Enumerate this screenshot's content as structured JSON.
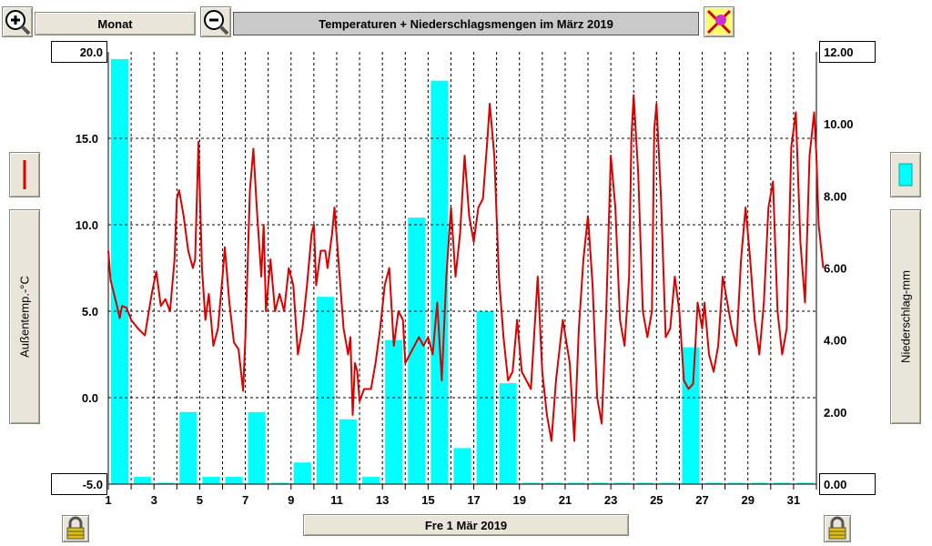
{
  "toolbar": {
    "zoom_in_icon": "zoom-in-icon",
    "period_label": "Monat",
    "zoom_out_icon": "zoom-out-icon",
    "title": "Temperaturen + Niederschlagsmengen im März 2019",
    "print_icon": "print-icon"
  },
  "left_panel": {
    "ylabel": "Außentemp.-°C",
    "series_icon": "red-line-icon"
  },
  "right_panel": {
    "ylabel": "Niederschlag-mm",
    "series_icon": "cyan-bar-icon"
  },
  "footer": {
    "date_label": "Fre 1 Mär 2019",
    "lock_icon": "lock-icon"
  },
  "colors": {
    "temp": "#dd0000",
    "rain": "#00ffff",
    "grid": "#000000"
  },
  "chart_data": {
    "type": "line+bar",
    "title": "Temperaturen + Niederschlagsmengen im März 2019",
    "x_ticks": [
      1,
      3,
      5,
      7,
      9,
      11,
      13,
      15,
      17,
      19,
      21,
      23,
      25,
      27,
      29,
      31
    ],
    "xlim": [
      1,
      32
    ],
    "y_left": {
      "label": "Außentemp.-°C",
      "lim": [
        -5,
        20
      ],
      "ticks": [
        "-5.0",
        "0.0",
        "5.0",
        "10.0",
        "15.0",
        "20.0"
      ]
    },
    "y_right": {
      "label": "Niederschlag-mm",
      "lim": [
        0,
        12
      ],
      "ticks": [
        "0.00",
        "2.00",
        "4.00",
        "6.00",
        "8.00",
        "10.00",
        "12.00"
      ]
    },
    "grid": true,
    "series": [
      {
        "kind": "bar",
        "axis": "right",
        "days": [
          1,
          2,
          3,
          4,
          5,
          6,
          7,
          8,
          9,
          10,
          11,
          12,
          13,
          14,
          15,
          16,
          17,
          18,
          19,
          20,
          21,
          22,
          23,
          24,
          25,
          26,
          27,
          28,
          29,
          30,
          31
        ],
        "values": [
          11.8,
          0.2,
          0.0,
          2.0,
          0.2,
          0.2,
          2.0,
          0.0,
          0.6,
          5.2,
          1.8,
          0.2,
          4.0,
          7.4,
          11.2,
          1.0,
          4.8,
          2.8,
          0.0,
          0.0,
          0.0,
          0.0,
          0.0,
          0.0,
          0.0,
          3.8,
          0.0,
          0.0,
          0.0,
          0.0,
          0.0
        ]
      },
      {
        "kind": "line",
        "axis": "left",
        "points": [
          [
            1.0,
            8.5
          ],
          [
            1.1,
            6.8
          ],
          [
            1.25,
            6.0
          ],
          [
            1.4,
            5.2
          ],
          [
            1.5,
            4.6
          ],
          [
            1.6,
            5.3
          ],
          [
            1.8,
            5.2
          ],
          [
            2.0,
            4.5
          ],
          [
            2.3,
            4.0
          ],
          [
            2.6,
            3.6
          ],
          [
            2.9,
            6.0
          ],
          [
            3.1,
            7.3
          ],
          [
            3.3,
            5.3
          ],
          [
            3.5,
            5.7
          ],
          [
            3.7,
            5.0
          ],
          [
            3.9,
            8.0
          ],
          [
            4.0,
            11.5
          ],
          [
            4.1,
            12.0
          ],
          [
            4.3,
            10.5
          ],
          [
            4.5,
            8.5
          ],
          [
            4.7,
            7.5
          ],
          [
            4.8,
            8.0
          ],
          [
            4.95,
            14.8
          ],
          [
            5.1,
            7.5
          ],
          [
            5.25,
            4.5
          ],
          [
            5.4,
            6.0
          ],
          [
            5.6,
            3.0
          ],
          [
            5.8,
            4.0
          ],
          [
            6.0,
            7.0
          ],
          [
            6.1,
            8.7
          ],
          [
            6.3,
            5.5
          ],
          [
            6.5,
            3.2
          ],
          [
            6.7,
            2.8
          ],
          [
            6.9,
            0.4
          ],
          [
            7.0,
            3.5
          ],
          [
            7.2,
            12.0
          ],
          [
            7.35,
            14.4
          ],
          [
            7.5,
            11.0
          ],
          [
            7.7,
            7.0
          ],
          [
            7.8,
            10.0
          ],
          [
            7.9,
            5.0
          ],
          [
            8.1,
            8.0
          ],
          [
            8.3,
            5.0
          ],
          [
            8.5,
            6.0
          ],
          [
            8.7,
            5.0
          ],
          [
            8.9,
            7.5
          ],
          [
            9.1,
            6.5
          ],
          [
            9.3,
            2.5
          ],
          [
            9.5,
            4.0
          ],
          [
            9.7,
            6.5
          ],
          [
            9.9,
            9.5
          ],
          [
            10.0,
            10.0
          ],
          [
            10.1,
            6.5
          ],
          [
            10.3,
            8.5
          ],
          [
            10.5,
            8.5
          ],
          [
            10.6,
            7.5
          ],
          [
            10.8,
            9.5
          ],
          [
            10.9,
            11.0
          ],
          [
            11.1,
            7.5
          ],
          [
            11.3,
            4.0
          ],
          [
            11.5,
            2.5
          ],
          [
            11.6,
            3.5
          ],
          [
            11.7,
            -1.0
          ],
          [
            11.8,
            2.0
          ],
          [
            11.9,
            1.5
          ],
          [
            12.0,
            -0.2
          ],
          [
            12.2,
            0.5
          ],
          [
            12.5,
            0.5
          ],
          [
            12.7,
            2.0
          ],
          [
            12.9,
            4.0
          ],
          [
            13.1,
            6.5
          ],
          [
            13.3,
            7.5
          ],
          [
            13.5,
            3.0
          ],
          [
            13.7,
            5.0
          ],
          [
            13.9,
            4.5
          ],
          [
            14.0,
            2.0
          ],
          [
            14.2,
            2.5
          ],
          [
            14.4,
            3.0
          ],
          [
            14.6,
            3.5
          ],
          [
            14.8,
            3.0
          ],
          [
            15.0,
            3.5
          ],
          [
            15.2,
            2.5
          ],
          [
            15.4,
            5.5
          ],
          [
            15.6,
            1.0
          ],
          [
            15.8,
            7.0
          ],
          [
            16.0,
            11.0
          ],
          [
            16.2,
            7.0
          ],
          [
            16.4,
            9.5
          ],
          [
            16.6,
            14.0
          ],
          [
            16.8,
            10.5
          ],
          [
            17.0,
            9.0
          ],
          [
            17.2,
            11.0
          ],
          [
            17.4,
            11.5
          ],
          [
            17.6,
            15.0
          ],
          [
            17.7,
            17.0
          ],
          [
            17.9,
            14.0
          ],
          [
            18.1,
            7.0
          ],
          [
            18.3,
            3.5
          ],
          [
            18.5,
            1.0
          ],
          [
            18.7,
            1.5
          ],
          [
            18.9,
            4.5
          ],
          [
            19.1,
            1.5
          ],
          [
            19.3,
            1.0
          ],
          [
            19.5,
            0.5
          ],
          [
            19.8,
            7.0
          ],
          [
            20.0,
            1.5
          ],
          [
            20.2,
            -1.0
          ],
          [
            20.4,
            -2.5
          ],
          [
            20.6,
            1.0
          ],
          [
            20.9,
            4.5
          ],
          [
            21.2,
            2.0
          ],
          [
            21.4,
            -2.5
          ],
          [
            21.6,
            4.0
          ],
          [
            21.8,
            8.0
          ],
          [
            22.0,
            10.5
          ],
          [
            22.2,
            6.5
          ],
          [
            22.4,
            0.0
          ],
          [
            22.6,
            -1.5
          ],
          [
            22.8,
            5.0
          ],
          [
            23.0,
            14.0
          ],
          [
            23.2,
            11.0
          ],
          [
            23.4,
            4.5
          ],
          [
            23.6,
            3.0
          ],
          [
            23.8,
            7.0
          ],
          [
            23.9,
            15.0
          ],
          [
            24.0,
            17.5
          ],
          [
            24.2,
            13.0
          ],
          [
            24.4,
            5.0
          ],
          [
            24.6,
            3.5
          ],
          [
            24.8,
            5.0
          ],
          [
            24.9,
            15.5
          ],
          [
            25.0,
            17.0
          ],
          [
            25.2,
            11.5
          ],
          [
            25.4,
            3.5
          ],
          [
            25.6,
            4.0
          ],
          [
            25.8,
            7.0
          ],
          [
            26.0,
            5.0
          ],
          [
            26.2,
            1.0
          ],
          [
            26.4,
            0.5
          ],
          [
            26.6,
            0.8
          ],
          [
            26.7,
            3.0
          ],
          [
            26.8,
            5.5
          ],
          [
            27.0,
            4.0
          ],
          [
            27.1,
            5.5
          ],
          [
            27.3,
            2.5
          ],
          [
            27.5,
            1.5
          ],
          [
            27.7,
            3.0
          ],
          [
            27.9,
            7.0
          ],
          [
            28.1,
            5.5
          ],
          [
            28.3,
            4.0
          ],
          [
            28.5,
            3.0
          ],
          [
            28.7,
            8.0
          ],
          [
            28.9,
            11.0
          ],
          [
            29.1,
            8.0
          ],
          [
            29.3,
            4.5
          ],
          [
            29.5,
            2.5
          ],
          [
            29.7,
            5.5
          ],
          [
            29.9,
            11.0
          ],
          [
            30.1,
            12.5
          ],
          [
            30.3,
            5.0
          ],
          [
            30.5,
            2.5
          ],
          [
            30.7,
            4.0
          ],
          [
            30.9,
            14.5
          ],
          [
            31.1,
            16.5
          ],
          [
            31.3,
            9.0
          ],
          [
            31.5,
            5.5
          ],
          [
            31.7,
            14.0
          ],
          [
            31.9,
            16.5
          ],
          [
            32.0,
            14.0
          ],
          [
            32.1,
            10.0
          ],
          [
            32.3,
            7.5
          ]
        ]
      }
    ]
  }
}
